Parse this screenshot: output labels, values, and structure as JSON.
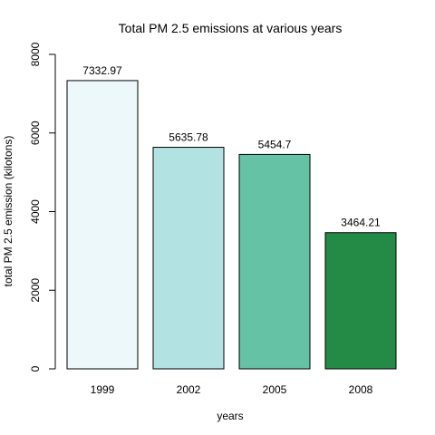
{
  "chart_data": {
    "type": "bar",
    "title": "Total PM 2.5 emissions at various years",
    "xlabel": "years",
    "ylabel": "total PM 2.5 emission (kilotons)",
    "categories": [
      "1999",
      "2002",
      "2005",
      "2008"
    ],
    "values": [
      7332.97,
      5635.78,
      5454.7,
      3464.21
    ],
    "data_labels": [
      "7332.97",
      "5635.78",
      "5454.7",
      "3464.21"
    ],
    "bar_colors": [
      "#EDF8FB",
      "#B2E2E2",
      "#66C2A4",
      "#238B45"
    ],
    "ylim": [
      0,
      8000
    ],
    "yticks": [
      0,
      2000,
      4000,
      6000,
      8000
    ],
    "ytick_labels": [
      "0",
      "2000",
      "4000",
      "6000",
      "8000"
    ],
    "grid": false,
    "legend": "none"
  }
}
